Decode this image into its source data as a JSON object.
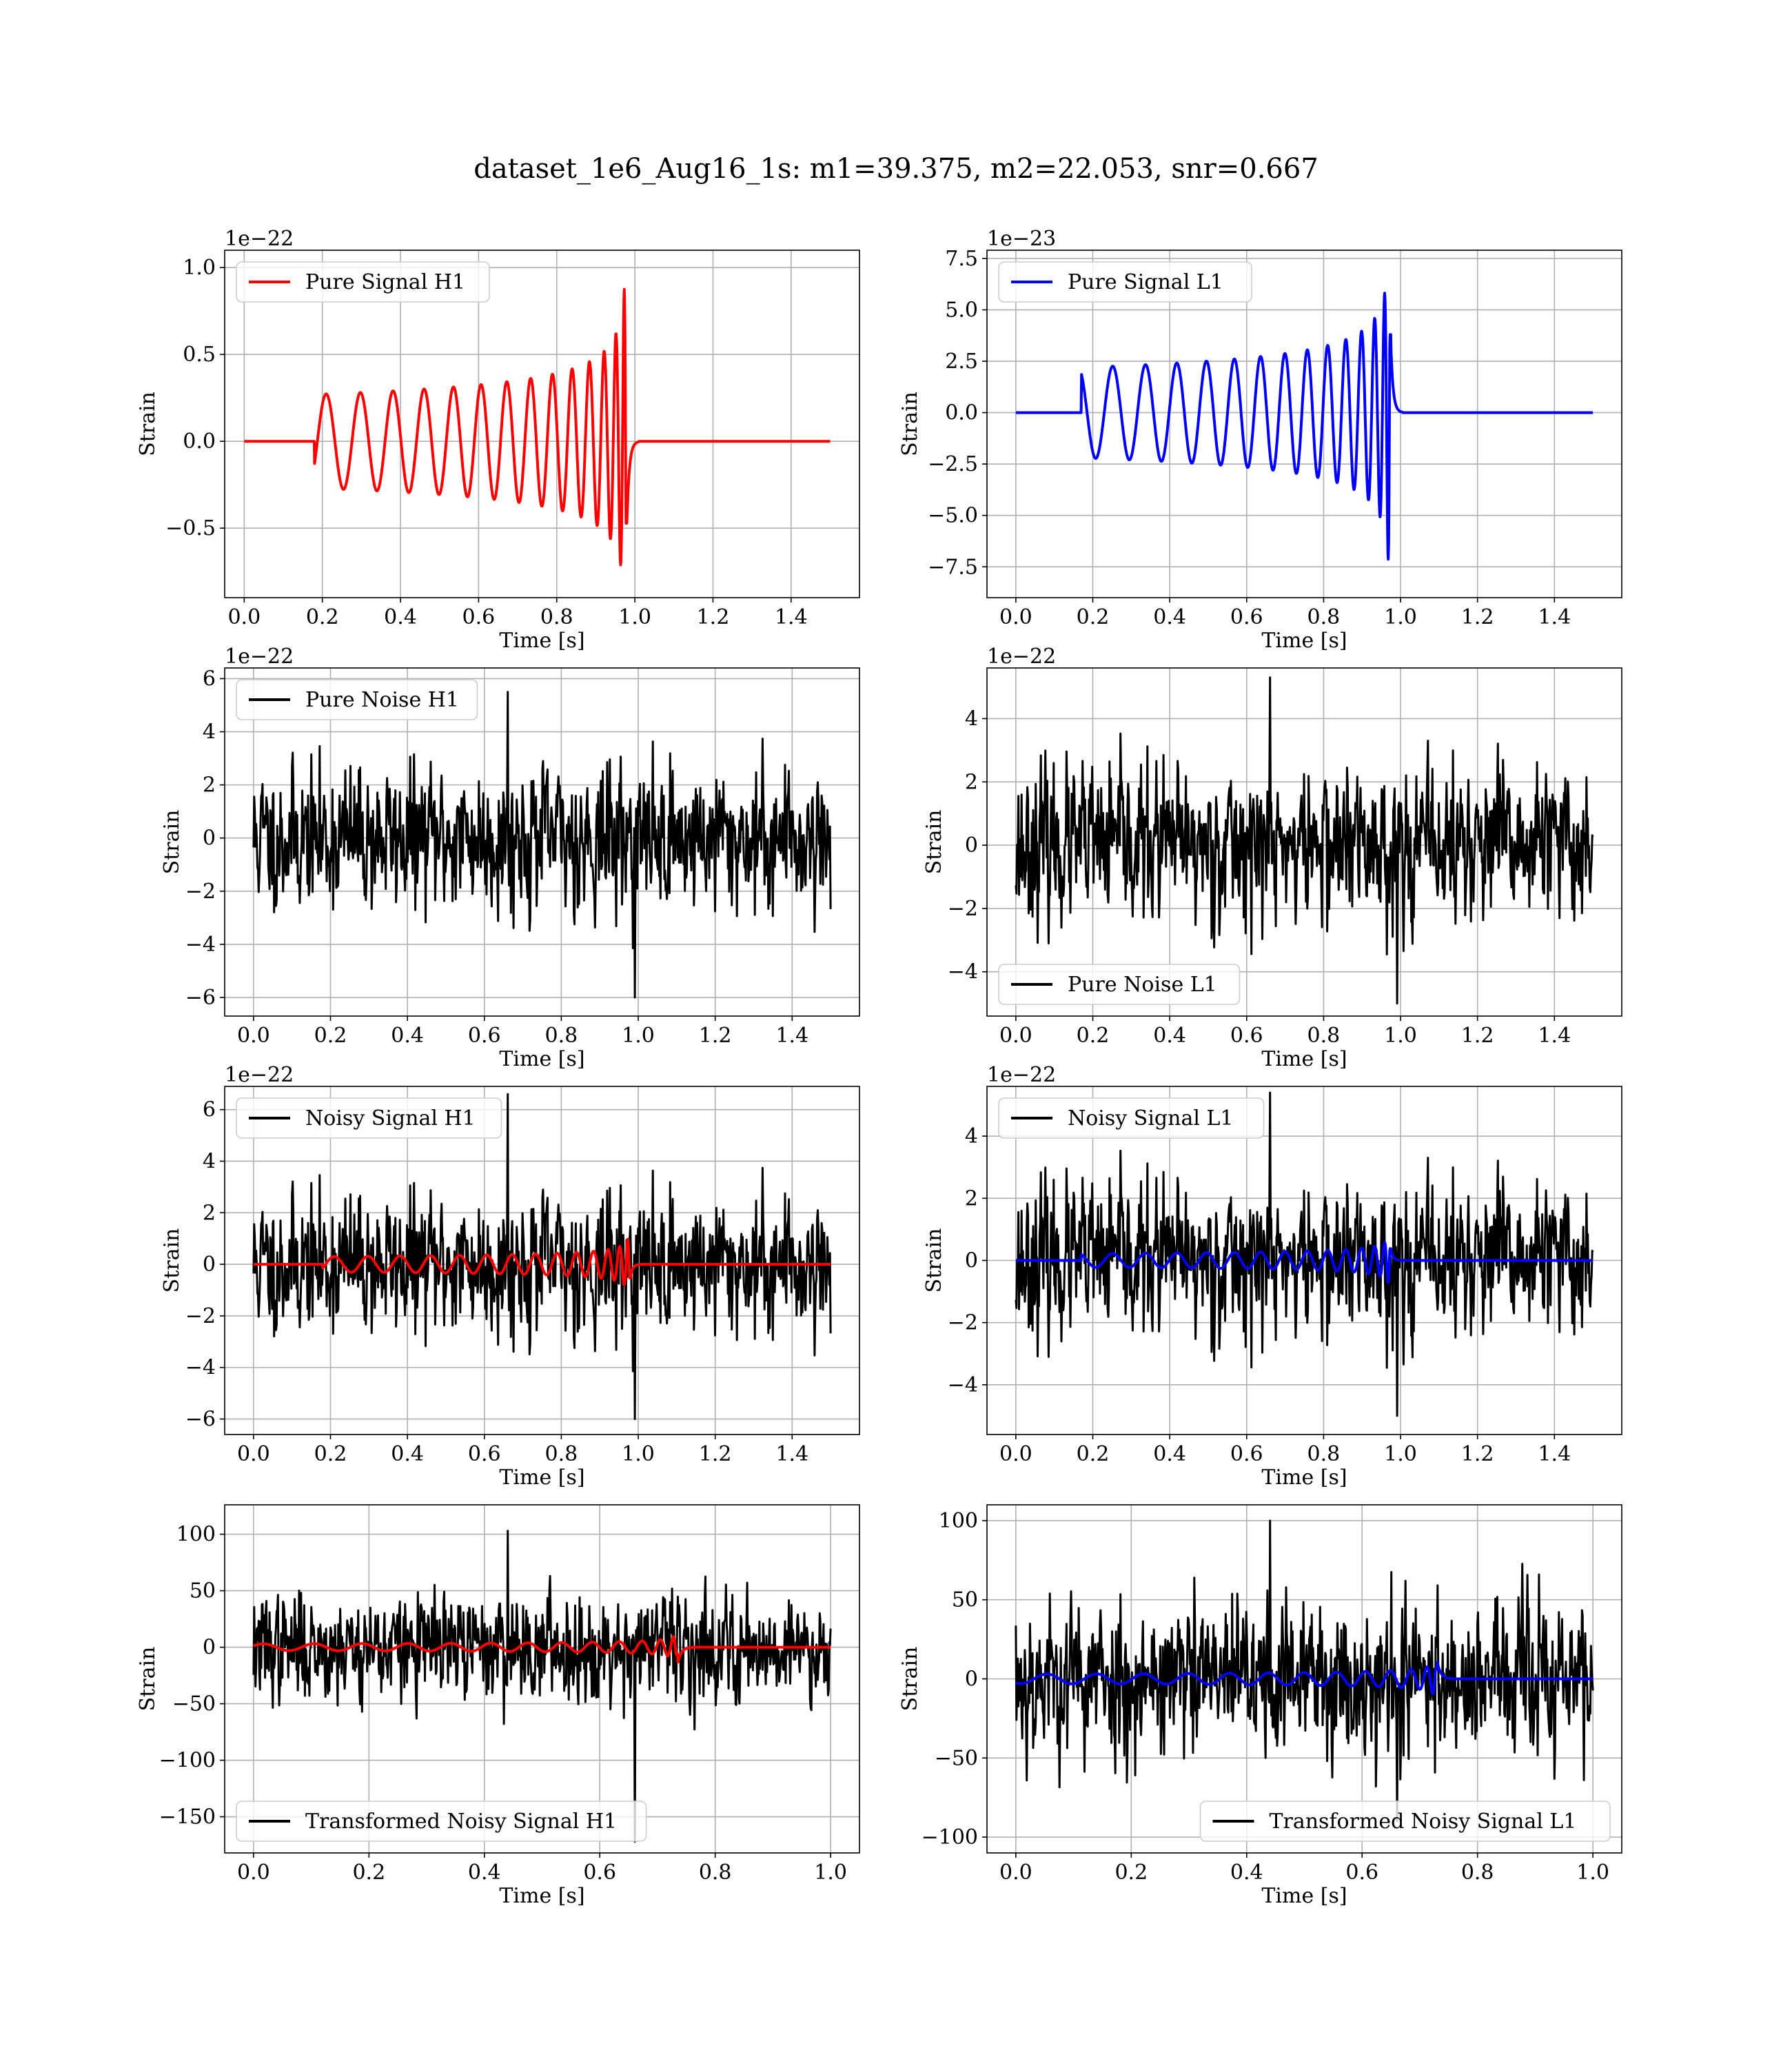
{
  "suptitle": "dataset_1e6_Aug16_1s: m1=39.375, m2=22.053, snr=0.667",
  "colors": {
    "h1_signal": "#ff0000",
    "l1_signal": "#0000ff",
    "noise": "#000000",
    "grid": "#b0b0b0"
  },
  "chart_data": [
    {
      "type": "line",
      "panel": "pure-signal-h1",
      "ylabel": "Strain",
      "xlabel": "Time [s]",
      "offset_text": "1e−22",
      "xlim": [
        -0.05,
        1.575
      ],
      "ylim": [
        -0.9,
        1.1
      ],
      "xticks": [
        0,
        0.2,
        0.4,
        0.6,
        0.8,
        1.0,
        1.2,
        1.4
      ],
      "xtick_labels": [
        "0.0",
        "0.2",
        "0.4",
        "0.6",
        "0.8",
        "1.0",
        "1.2",
        "1.4"
      ],
      "yticks": [
        -0.5,
        0,
        0.5,
        1.0
      ],
      "ytick_labels": [
        "−0.5",
        "0.0",
        "0.5",
        "1.0"
      ],
      "legend": {
        "loc": "upper left"
      },
      "series": [
        {
          "name": "Pure Signal H1",
          "color": "#ff0000",
          "kind": "chirp",
          "x_start": 0,
          "x_end": 1.5,
          "t_on": 0.18,
          "t_merge": 0.98,
          "amp_start": 0.27,
          "amp_peak": 1.04,
          "amp_min": -0.88,
          "sign": 1
        }
      ]
    },
    {
      "type": "line",
      "panel": "pure-signal-l1",
      "ylabel": "Strain",
      "xlabel": "Time [s]",
      "offset_text": "1e−23",
      "xlim": [
        -0.075,
        1.575
      ],
      "ylim": [
        -9.0,
        7.9
      ],
      "xticks": [
        0,
        0.2,
        0.4,
        0.6,
        0.8,
        1.0,
        1.2,
        1.4
      ],
      "xtick_labels": [
        "0.0",
        "0.2",
        "0.4",
        "0.6",
        "0.8",
        "1.0",
        "1.2",
        "1.4"
      ],
      "yticks": [
        -7.5,
        -5.0,
        -2.5,
        0,
        2.5,
        5.0,
        7.5
      ],
      "ytick_labels": [
        "−7.5",
        "−5.0",
        "−2.5",
        "0.0",
        "2.5",
        "5.0",
        "7.5"
      ],
      "legend": {
        "loc": "upper left"
      },
      "series": [
        {
          "name": "Pure Signal L1",
          "color": "#0000ff",
          "kind": "chirp",
          "x_start": 0,
          "x_end": 1.5,
          "t_on": 0.17,
          "t_merge": 0.975,
          "amp_start": 2.2,
          "amp_peak": 7.5,
          "amp_min": -8.4,
          "sign": -1
        }
      ]
    },
    {
      "type": "line",
      "panel": "pure-noise-h1",
      "ylabel": "Strain",
      "xlabel": "Time [s]",
      "offset_text": "1e−22",
      "xlim": [
        -0.075,
        1.575
      ],
      "ylim": [
        -6.7,
        6.4
      ],
      "xticks": [
        0,
        0.2,
        0.4,
        0.6,
        0.8,
        1.0,
        1.2,
        1.4
      ],
      "xtick_labels": [
        "0.0",
        "0.2",
        "0.4",
        "0.6",
        "0.8",
        "1.0",
        "1.2",
        "1.4"
      ],
      "yticks": [
        -6,
        -4,
        -2,
        0,
        2,
        4,
        6
      ],
      "ytick_labels": [
        "−6",
        "−4",
        "−2",
        "0",
        "2",
        "4",
        "6"
      ],
      "legend": {
        "loc": "upper left"
      },
      "series": [
        {
          "name": "Pure Noise H1",
          "color": "#000000",
          "kind": "noise",
          "x_start": 0,
          "x_end": 1.5,
          "sigma": 1.5,
          "max": 5.5,
          "min": -6.0,
          "seed": 11
        }
      ]
    },
    {
      "type": "line",
      "panel": "pure-noise-l1",
      "ylabel": "Strain",
      "xlabel": "Time [s]",
      "offset_text": "1e−22",
      "xlim": [
        -0.075,
        1.575
      ],
      "ylim": [
        -5.4,
        5.6
      ],
      "xticks": [
        0,
        0.2,
        0.4,
        0.6,
        0.8,
        1.0,
        1.2,
        1.4
      ],
      "xtick_labels": [
        "0.0",
        "0.2",
        "0.4",
        "0.6",
        "0.8",
        "1.0",
        "1.2",
        "1.4"
      ],
      "yticks": [
        -4,
        -2,
        0,
        2,
        4
      ],
      "ytick_labels": [
        "−4",
        "−2",
        "0",
        "2",
        "4"
      ],
      "legend": {
        "loc": "lower left"
      },
      "series": [
        {
          "name": "Pure Noise L1",
          "color": "#000000",
          "kind": "noise",
          "x_start": 0,
          "x_end": 1.5,
          "sigma": 1.35,
          "max": 5.3,
          "min": -5.0,
          "seed": 23
        }
      ]
    },
    {
      "type": "line",
      "panel": "noisy-signal-h1",
      "ylabel": "Strain",
      "xlabel": "Time [s]",
      "offset_text": "1e−22",
      "xlim": [
        -0.075,
        1.575
      ],
      "ylim": [
        -6.6,
        6.9
      ],
      "xticks": [
        0,
        0.2,
        0.4,
        0.6,
        0.8,
        1.0,
        1.2,
        1.4
      ],
      "xtick_labels": [
        "0.0",
        "0.2",
        "0.4",
        "0.6",
        "0.8",
        "1.0",
        "1.2",
        "1.4"
      ],
      "yticks": [
        -6,
        -4,
        -2,
        0,
        2,
        4,
        6
      ],
      "ytick_labels": [
        "−6",
        "−4",
        "−2",
        "0",
        "2",
        "4",
        "6"
      ],
      "legend": {
        "loc": "upper left"
      },
      "series": [
        {
          "name": "Noisy Signal H1",
          "color": "#000000",
          "kind": "noise",
          "x_start": 0,
          "x_end": 1.5,
          "sigma": 1.5,
          "max": 6.6,
          "min": -6.0,
          "seed": 11
        },
        {
          "color": "#ff0000",
          "kind": "chirp",
          "x_start": 0,
          "x_end": 1.5,
          "t_on": 0.18,
          "t_merge": 0.98,
          "amp_start": 0.3,
          "amp_peak": 1.04,
          "amp_min": -0.88,
          "sign": 1
        }
      ]
    },
    {
      "type": "line",
      "panel": "noisy-signal-l1",
      "ylabel": "Strain",
      "xlabel": "Time [s]",
      "offset_text": "1e−22",
      "xlim": [
        -0.075,
        1.575
      ],
      "ylim": [
        -5.6,
        5.6
      ],
      "xticks": [
        0,
        0.2,
        0.4,
        0.6,
        0.8,
        1.0,
        1.2,
        1.4
      ],
      "xtick_labels": [
        "0.0",
        "0.2",
        "0.4",
        "0.6",
        "0.8",
        "1.0",
        "1.2",
        "1.4"
      ],
      "yticks": [
        -4,
        -2,
        0,
        2,
        4
      ],
      "ytick_labels": [
        "−4",
        "−2",
        "0",
        "2",
        "4"
      ],
      "legend": {
        "loc": "upper left"
      },
      "series": [
        {
          "name": "Noisy Signal L1",
          "color": "#000000",
          "kind": "noise",
          "x_start": 0,
          "x_end": 1.5,
          "sigma": 1.35,
          "max": 5.4,
          "min": -5.0,
          "seed": 23
        },
        {
          "color": "#0000ff",
          "kind": "chirp",
          "x_start": 0,
          "x_end": 1.5,
          "t_on": 0.17,
          "t_merge": 0.975,
          "amp_start": 0.22,
          "amp_peak": 0.75,
          "amp_min": -0.84,
          "sign": -1
        }
      ]
    },
    {
      "type": "line",
      "panel": "transformed-h1",
      "ylabel": "Strain",
      "xlabel": "Time [s]",
      "xlim": [
        -0.05,
        1.05
      ],
      "ylim": [
        -182,
        126
      ],
      "xticks": [
        0,
        0.2,
        0.4,
        0.6,
        0.8,
        1.0
      ],
      "xtick_labels": [
        "0.0",
        "0.2",
        "0.4",
        "0.6",
        "0.8",
        "1.0"
      ],
      "yticks": [
        -150,
        -100,
        -50,
        0,
        50,
        100
      ],
      "ytick_labels": [
        "−150",
        "−100",
        "−50",
        "0",
        "50",
        "100"
      ],
      "legend": {
        "loc": "lower left"
      },
      "series": [
        {
          "name": "Transformed Noisy Signal H1",
          "color": "#000000",
          "kind": "noise",
          "x_start": 0,
          "x_end": 1.0,
          "sigma": 26,
          "max": 103,
          "min": -172,
          "seed": 37
        },
        {
          "color": "#ff0000",
          "kind": "chirp",
          "x_start": 0,
          "x_end": 1.0,
          "t_on": 0.0,
          "t_merge": 0.735,
          "amp_start": 3,
          "amp_peak": 28,
          "amp_min": -30,
          "sign": 1
        }
      ]
    },
    {
      "type": "line",
      "panel": "transformed-l1",
      "ylabel": "Strain",
      "xlabel": "Time [s]",
      "xlim": [
        -0.05,
        1.05
      ],
      "ylim": [
        -110,
        110
      ],
      "xticks": [
        0,
        0.2,
        0.4,
        0.6,
        0.8,
        1.0
      ],
      "xtick_labels": [
        "0.0",
        "0.2",
        "0.4",
        "0.6",
        "0.8",
        "1.0"
      ],
      "yticks": [
        -100,
        -50,
        0,
        50,
        100
      ],
      "ytick_labels": [
        "−100",
        "−50",
        "0",
        "50",
        "100"
      ],
      "legend": {
        "loc": "lower right"
      },
      "series": [
        {
          "name": "Transformed Noisy Signal L1",
          "color": "#000000",
          "kind": "noise",
          "x_start": 0,
          "x_end": 1.0,
          "sigma": 28,
          "max": 100,
          "min": -90,
          "seed": 53
        },
        {
          "color": "#0000ff",
          "kind": "chirp",
          "x_start": 0,
          "x_end": 1.0,
          "t_on": 0.0,
          "t_merge": 0.73,
          "amp_start": 3,
          "amp_peak": 22,
          "amp_min": -28,
          "sign": -1
        }
      ]
    }
  ]
}
